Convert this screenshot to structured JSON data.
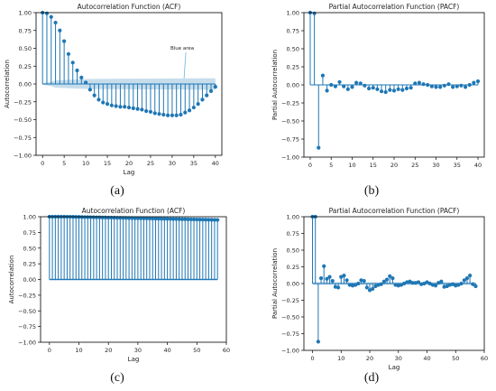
{
  "figure": {
    "captions": [
      "(a)",
      "(b)",
      "(c)",
      "(d)"
    ]
  },
  "chart_data": [
    {
      "type": "stem",
      "title": "Autocorrelation Function (ACF)",
      "xlabel": "Lag",
      "ylabel": "Autocorrelation",
      "xlim": [
        -1.5,
        41.5
      ],
      "ylim": [
        -1.0,
        1.0
      ],
      "xticks": [
        0,
        5,
        10,
        15,
        20,
        25,
        30,
        35,
        40
      ],
      "yticks": [
        -1.0,
        -0.75,
        -0.5,
        -0.25,
        0.0,
        0.25,
        0.5,
        0.75,
        1.0
      ],
      "x": [
        0,
        1,
        2,
        3,
        4,
        5,
        6,
        7,
        8,
        9,
        10,
        11,
        12,
        13,
        14,
        15,
        16,
        17,
        18,
        19,
        20,
        21,
        22,
        23,
        24,
        25,
        26,
        27,
        28,
        29,
        30,
        31,
        32,
        33,
        34,
        35,
        36,
        37,
        38,
        39,
        40
      ],
      "values": [
        1.0,
        0.99,
        0.94,
        0.86,
        0.75,
        0.6,
        0.42,
        0.3,
        0.19,
        0.09,
        0.02,
        -0.08,
        -0.16,
        -0.22,
        -0.26,
        -0.28,
        -0.3,
        -0.31,
        -0.32,
        -0.32,
        -0.33,
        -0.34,
        -0.35,
        -0.36,
        -0.38,
        -0.39,
        -0.41,
        -0.42,
        -0.43,
        -0.44,
        -0.44,
        -0.44,
        -0.43,
        -0.4,
        -0.37,
        -0.33,
        -0.28,
        -0.22,
        -0.16,
        -0.1,
        -0.04
      ],
      "confidence_band": {
        "lower": [
          -0.02,
          -0.03,
          -0.04,
          -0.05,
          -0.06,
          -0.07
        ],
        "upper": [
          0.02,
          0.03,
          0.04,
          0.05,
          0.06,
          0.07
        ],
        "x": [
          0,
          1,
          2,
          3,
          4,
          40
        ],
        "style": "shaded"
      },
      "annotation": {
        "text": "Blue area",
        "point_x": 34,
        "point_y": 0.05
      },
      "color": "#1f77b4"
    },
    {
      "type": "stem",
      "title": "Partial Autocorrelation Function (PACF)",
      "xlabel": "",
      "ylabel": "Partial Autocorrelation",
      "xlim": [
        -1.5,
        41.5
      ],
      "ylim": [
        -1.0,
        1.0
      ],
      "xticks": [
        0,
        5,
        10,
        15,
        20,
        25,
        30,
        35,
        40
      ],
      "yticks": [
        -1.0,
        -0.75,
        -0.5,
        -0.25,
        0.0,
        0.25,
        0.5,
        0.75,
        1.0
      ],
      "x": [
        0,
        1,
        2,
        3,
        4,
        5,
        6,
        7,
        8,
        9,
        10,
        11,
        12,
        13,
        14,
        15,
        16,
        17,
        18,
        19,
        20,
        21,
        22,
        23,
        24,
        25,
        26,
        27,
        28,
        29,
        30,
        31,
        32,
        33,
        34,
        35,
        36,
        37,
        38,
        39,
        40
      ],
      "values": [
        1.0,
        0.99,
        -0.87,
        0.13,
        -0.08,
        0.0,
        -0.02,
        0.04,
        -0.02,
        -0.06,
        -0.03,
        0.03,
        0.02,
        -0.01,
        -0.05,
        -0.04,
        -0.06,
        -0.09,
        -0.1,
        -0.07,
        -0.08,
        -0.06,
        -0.07,
        -0.05,
        -0.04,
        0.02,
        0.03,
        0.01,
        0.0,
        -0.02,
        -0.03,
        -0.03,
        -0.01,
        0.01,
        -0.03,
        -0.02,
        -0.01,
        -0.03,
        0.0,
        0.03,
        0.05
      ],
      "color": "#1f77b4"
    },
    {
      "type": "stem",
      "title": "Autocorrelation Function (ACF)",
      "xlabel": "Lag",
      "ylabel": "Autocorrelation",
      "xlim": [
        -3,
        60
      ],
      "ylim": [
        -1.0,
        1.0
      ],
      "xticks": [
        0,
        10,
        20,
        30,
        40,
        50,
        60
      ],
      "yticks": [
        -1.0,
        -0.75,
        -0.5,
        -0.25,
        0.0,
        0.25,
        0.5,
        0.75,
        1.0
      ],
      "x": [
        0,
        1,
        2,
        3,
        4,
        5,
        6,
        7,
        8,
        9,
        10,
        11,
        12,
        13,
        14,
        15,
        16,
        17,
        18,
        19,
        20,
        21,
        22,
        23,
        24,
        25,
        26,
        27,
        28,
        29,
        30,
        31,
        32,
        33,
        34,
        35,
        36,
        37,
        38,
        39,
        40,
        41,
        42,
        43,
        44,
        45,
        46,
        47,
        48,
        49,
        50,
        51,
        52,
        53,
        54,
        55,
        56,
        57
      ],
      "values": [
        1.0,
        1.0,
        1.0,
        1.0,
        1.0,
        1.0,
        0.999,
        0.999,
        0.998,
        0.997,
        0.996,
        0.995,
        0.994,
        0.993,
        0.992,
        0.991,
        0.99,
        0.989,
        0.988,
        0.987,
        0.986,
        0.985,
        0.984,
        0.983,
        0.982,
        0.981,
        0.98,
        0.979,
        0.978,
        0.977,
        0.976,
        0.975,
        0.974,
        0.973,
        0.972,
        0.971,
        0.97,
        0.969,
        0.968,
        0.967,
        0.966,
        0.965,
        0.964,
        0.963,
        0.962,
        0.961,
        0.96,
        0.959,
        0.958,
        0.957,
        0.956,
        0.955,
        0.954,
        0.953,
        0.952,
        0.951,
        0.95,
        0.949
      ],
      "confidence_band": {
        "style": "shaded",
        "halfwidth": 0.02
      },
      "color": "#1f77b4"
    },
    {
      "type": "stem",
      "title": "Partial Autocorrelation Function (PACF)",
      "xlabel": "Lag",
      "ylabel": "Partial Autocorrelation",
      "xlim": [
        -3,
        60
      ],
      "ylim": [
        -1.0,
        1.0
      ],
      "xticks": [
        0,
        10,
        20,
        30,
        40,
        50,
        60
      ],
      "yticks": [
        -1.0,
        -0.75,
        -0.5,
        -0.25,
        0.0,
        0.25,
        0.5,
        0.75,
        1.0
      ],
      "x": [
        0,
        1,
        2,
        3,
        4,
        5,
        6,
        7,
        8,
        9,
        10,
        11,
        12,
        13,
        14,
        15,
        16,
        17,
        18,
        19,
        20,
        21,
        22,
        23,
        24,
        25,
        26,
        27,
        28,
        29,
        30,
        31,
        32,
        33,
        34,
        35,
        36,
        37,
        38,
        39,
        40,
        41,
        42,
        43,
        44,
        45,
        46,
        47,
        48,
        49,
        50,
        51,
        52,
        53,
        54,
        55,
        56,
        57
      ],
      "values": [
        1.0,
        1.0,
        -0.87,
        0.08,
        0.26,
        0.07,
        0.1,
        0.04,
        -0.05,
        -0.06,
        0.1,
        0.12,
        0.05,
        -0.02,
        -0.03,
        -0.02,
        0.0,
        0.05,
        0.04,
        -0.06,
        -0.1,
        -0.08,
        -0.04,
        -0.02,
        -0.01,
        0.03,
        0.06,
        0.11,
        0.08,
        -0.02,
        -0.03,
        -0.02,
        0.0,
        0.02,
        0.03,
        0.01,
        0.01,
        0.02,
        -0.01,
        0.0,
        0.02,
        0.0,
        -0.02,
        -0.03,
        0.01,
        0.03,
        -0.05,
        -0.04,
        -0.02,
        -0.01,
        -0.03,
        -0.02,
        0.0,
        0.05,
        0.08,
        0.12,
        -0.01,
        -0.04
      ],
      "confidence_band": {
        "style": "shaded",
        "halfwidth": 0.02
      },
      "color": "#1f77b4"
    }
  ]
}
